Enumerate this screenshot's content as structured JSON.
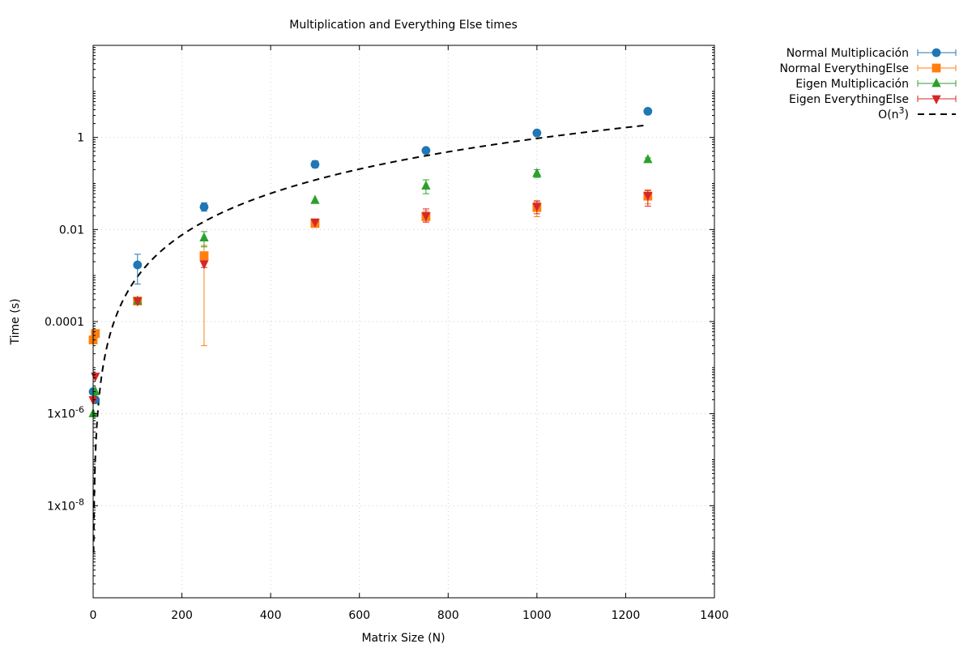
{
  "chart_data": {
    "type": "scatter",
    "title": "Multiplication and Everything Else times",
    "xlabel": "Matrix Size (N)",
    "ylabel": "Time (s)",
    "xlim": [
      0,
      1400
    ],
    "ylim": [
      1e-10,
      100
    ],
    "yscale": "log",
    "grid": true,
    "legend_position": "outside-top-right",
    "x_ticks": [
      {
        "value": 0,
        "label": "0"
      },
      {
        "value": 200,
        "label": "200"
      },
      {
        "value": 400,
        "label": "400"
      },
      {
        "value": 600,
        "label": "600"
      },
      {
        "value": 800,
        "label": "800"
      },
      {
        "value": 1000,
        "label": "1000"
      },
      {
        "value": 1200,
        "label": "1200"
      },
      {
        "value": 1400,
        "label": "1400"
      }
    ],
    "y_ticks": [
      {
        "value": 1e-08,
        "label": "1x10",
        "exp": "-8"
      },
      {
        "value": 1e-06,
        "label": "1x10",
        "exp": "-6"
      },
      {
        "value": 0.0001,
        "label": "0.0001",
        "exp": ""
      },
      {
        "value": 0.01,
        "label": "0.01",
        "exp": ""
      },
      {
        "value": 1,
        "label": "1",
        "exp": ""
      }
    ],
    "series": [
      {
        "name": "Normal Multiplicación",
        "color": "#1f77b4",
        "marker": "circle",
        "points": [
          {
            "x": 0,
            "y": 3e-06
          },
          {
            "x": 5,
            "y": 2e-06
          },
          {
            "x": 100,
            "y": 0.0017,
            "ylo": 0.00065,
            "yhi": 0.0029
          },
          {
            "x": 250,
            "y": 0.031,
            "ylo": 0.025,
            "yhi": 0.038
          },
          {
            "x": 500,
            "y": 0.26,
            "ylo": 0.22,
            "yhi": 0.31
          },
          {
            "x": 750,
            "y": 0.52
          },
          {
            "x": 1000,
            "y": 1.25
          },
          {
            "x": 1250,
            "y": 3.7
          }
        ]
      },
      {
        "name": "Normal EverythingElse",
        "color": "#ff7f0e",
        "marker": "square",
        "points": [
          {
            "x": 0,
            "y": 4e-05
          },
          {
            "x": 5,
            "y": 5.5e-05
          },
          {
            "x": 100,
            "y": 0.00028
          },
          {
            "x": 250,
            "y": 0.0027,
            "ylo": 3e-05,
            "yhi": 0.0045
          },
          {
            "x": 500,
            "y": 0.0135
          },
          {
            "x": 750,
            "y": 0.019,
            "ylo": 0.0145,
            "yhi": 0.025
          },
          {
            "x": 1000,
            "y": 0.03,
            "ylo": 0.019,
            "yhi": 0.04
          },
          {
            "x": 1250,
            "y": 0.053,
            "ylo": 0.036,
            "yhi": 0.073
          }
        ]
      },
      {
        "name": "Eigen Multiplicación",
        "color": "#2ca02c",
        "marker": "triangle-up",
        "points": [
          {
            "x": 0,
            "y": 1e-06
          },
          {
            "x": 5,
            "y": 3e-06
          },
          {
            "x": 100,
            "y": 0.00028
          },
          {
            "x": 250,
            "y": 0.0066,
            "ylo": 0.0042,
            "yhi": 0.009
          },
          {
            "x": 500,
            "y": 0.043
          },
          {
            "x": 750,
            "y": 0.088,
            "ylo": 0.06,
            "yhi": 0.12
          },
          {
            "x": 1000,
            "y": 0.165,
            "ylo": 0.135,
            "yhi": 0.2
          },
          {
            "x": 1250,
            "y": 0.33,
            "ylo": 0.3,
            "yhi": 0.36
          }
        ]
      },
      {
        "name": "Eigen EverythingElse",
        "color": "#d62728",
        "marker": "triangle-down",
        "points": [
          {
            "x": 0,
            "y": 2e-06
          },
          {
            "x": 5,
            "y": 6.5e-06
          },
          {
            "x": 100,
            "y": 0.00028
          },
          {
            "x": 250,
            "y": 0.0018,
            "ylo": 0.0015,
            "yhi": 0.0021
          },
          {
            "x": 500,
            "y": 0.0145
          },
          {
            "x": 750,
            "y": 0.02,
            "ylo": 0.0145,
            "yhi": 0.028
          },
          {
            "x": 1000,
            "y": 0.032,
            "ylo": 0.022,
            "yhi": 0.042
          },
          {
            "x": 1250,
            "y": 0.055,
            "ylo": 0.032,
            "yhi": 0.07
          }
        ]
      }
    ],
    "reference_curve": {
      "name": "O(n",
      "name_sup": "3",
      "name_suffix": ")",
      "color": "#000000",
      "style": "dashed",
      "coefficient": 9.5e-10,
      "exponent": 3,
      "x_range": [
        0,
        1250
      ]
    }
  }
}
